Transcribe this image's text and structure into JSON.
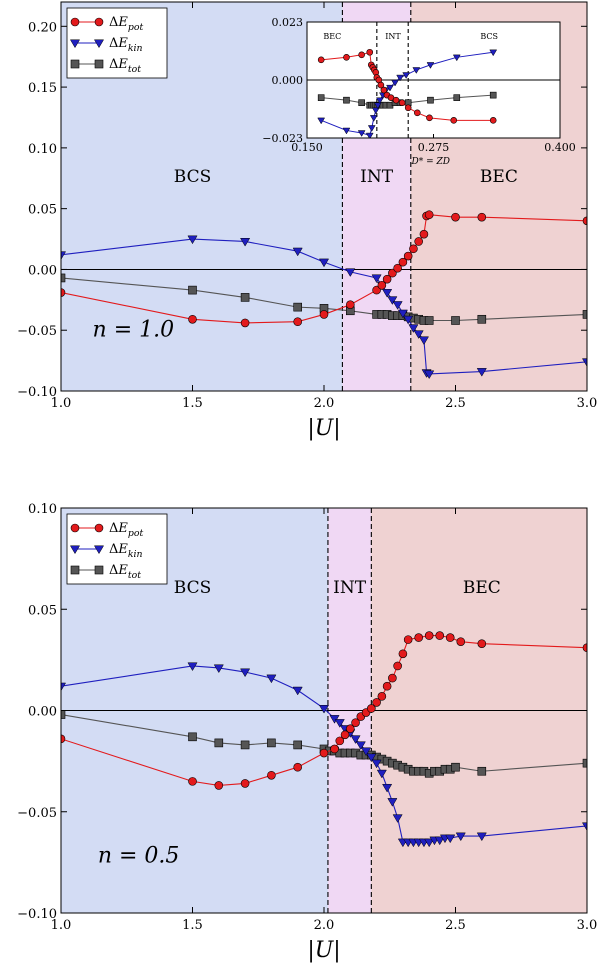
{
  "chart_data": [
    {
      "type": "line",
      "x_var": "|U|",
      "xlabel": "|U|",
      "ylabel": "",
      "xlim": [
        1.0,
        3.0
      ],
      "ylim": [
        -0.1,
        0.22
      ],
      "xticks": [
        "1.0",
        "1.5",
        "2.0",
        "2.5",
        "3.0"
      ],
      "yticks": [
        "−0.10",
        "−0.05",
        "0.00",
        "0.05",
        "0.10",
        "0.15",
        "0.20"
      ],
      "ytick_values": [
        -0.1,
        -0.05,
        0.0,
        0.05,
        0.1,
        0.15,
        0.2
      ],
      "xtick_values": [
        1.0,
        1.5,
        2.0,
        2.5,
        3.0
      ],
      "annotation": "n = 1.0",
      "regions": [
        {
          "label": "BCS",
          "from": 1.0,
          "to": 2.07,
          "color": "#d3dcf4",
          "text_color": "#4a6fd6"
        },
        {
          "label": "INT",
          "from": 2.07,
          "to": 2.33,
          "color": "#f0d8f4",
          "text_color": "#c55ad0"
        },
        {
          "label": "BEC",
          "from": 2.33,
          "to": 3.0,
          "color": "#efd2d2",
          "text_color": "#b32828"
        }
      ],
      "boundaries": [
        2.07,
        2.33
      ],
      "legend_position": "top-left",
      "series": [
        {
          "name": "ΔE_pot",
          "color": "#e31a1c",
          "marker": "circle",
          "x": [
            1.0,
            1.5,
            1.7,
            1.9,
            2.0,
            2.1,
            2.2,
            2.22,
            2.24,
            2.26,
            2.28,
            2.3,
            2.32,
            2.34,
            2.36,
            2.38,
            2.39,
            2.4,
            2.5,
            2.6,
            3.0
          ],
          "y": [
            -0.019,
            -0.041,
            -0.044,
            -0.043,
            -0.037,
            -0.029,
            -0.017,
            -0.013,
            -0.008,
            -0.003,
            0.001,
            0.006,
            0.011,
            0.017,
            0.023,
            0.029,
            0.044,
            0.045,
            0.043,
            0.043,
            0.04
          ]
        },
        {
          "name": "ΔE_kin",
          "color": "#1f1fbf",
          "marker": "triangle-down",
          "x": [
            1.0,
            1.5,
            1.7,
            1.9,
            2.0,
            2.1,
            2.2,
            2.22,
            2.24,
            2.26,
            2.28,
            2.3,
            2.32,
            2.34,
            2.36,
            2.38,
            2.39,
            2.4,
            2.6,
            3.0
          ],
          "y": [
            0.012,
            0.025,
            0.023,
            0.015,
            0.006,
            -0.002,
            -0.007,
            -0.013,
            -0.019,
            -0.025,
            -0.029,
            -0.036,
            -0.041,
            -0.048,
            -0.053,
            -0.058,
            -0.085,
            -0.086,
            -0.084,
            -0.076
          ]
        },
        {
          "name": "ΔE_tot",
          "color": "#555555",
          "marker": "square",
          "x": [
            1.0,
            1.5,
            1.7,
            1.9,
            2.0,
            2.1,
            2.2,
            2.22,
            2.24,
            2.26,
            2.28,
            2.3,
            2.32,
            2.34,
            2.36,
            2.38,
            2.4,
            2.5,
            2.6,
            3.0
          ],
          "y": [
            -0.007,
            -0.017,
            -0.023,
            -0.031,
            -0.032,
            -0.034,
            -0.037,
            -0.037,
            -0.037,
            -0.038,
            -0.038,
            -0.038,
            -0.039,
            -0.04,
            -0.041,
            -0.042,
            -0.042,
            -0.042,
            -0.041,
            -0.037
          ]
        }
      ],
      "inset": {
        "x_var": "D* = ZD",
        "xlabel": "D* = ZD",
        "xlim": [
          0.15,
          0.4
        ],
        "ylim": [
          -0.023,
          0.023
        ],
        "xticks": [
          "0.150",
          "0.275",
          "0.400"
        ],
        "xtick_values": [
          0.15,
          0.275,
          0.4
        ],
        "yticks": [
          "0.023",
          "0.000",
          "−0.023"
        ],
        "ytick_values": [
          0.023,
          0.0,
          -0.023
        ],
        "regions": [
          {
            "label": "BEC",
            "from": 0.15,
            "to": 0.219,
            "text_color": "#b32828"
          },
          {
            "label": "INT",
            "from": 0.219,
            "to": 0.25,
            "text_color": "#c55ad0"
          },
          {
            "label": "BCS",
            "from": 0.25,
            "to": 0.4,
            "text_color": "#4a6fd6"
          }
        ],
        "boundaries": [
          0.219,
          0.25
        ],
        "series": [
          {
            "name": "ΔE_pot",
            "color": "#e31a1c",
            "marker": "circle",
            "x": [
              0.164,
              0.189,
              0.204,
              0.212,
              0.2135,
              0.215,
              0.2165,
              0.218,
              0.219,
              0.221,
              0.223,
              0.226,
              0.229,
              0.233,
              0.238,
              0.244,
              0.25,
              0.259,
              0.271,
              0.295,
              0.334
            ],
            "y": [
              0.008,
              0.009,
              0.01,
              0.011,
              0.006,
              0.005,
              0.004,
              0.003,
              0.001,
              0.0,
              -0.002,
              -0.004,
              -0.006,
              -0.007,
              -0.008,
              -0.009,
              -0.011,
              -0.013,
              -0.015,
              -0.016,
              -0.016
            ]
          },
          {
            "name": "ΔE_kin",
            "color": "#1f1fbf",
            "marker": "triangle-down",
            "x": [
              0.164,
              0.189,
              0.204,
              0.212,
              0.214,
              0.216,
              0.218,
              0.22,
              0.222,
              0.225,
              0.228,
              0.232,
              0.237,
              0.242,
              0.248,
              0.258,
              0.272,
              0.298,
              0.334
            ],
            "y": [
              -0.016,
              -0.02,
              -0.021,
              -0.022,
              -0.019,
              -0.015,
              -0.012,
              -0.01,
              -0.008,
              -0.006,
              -0.004,
              -0.003,
              -0.001,
              0.001,
              0.002,
              0.004,
              0.006,
              0.009,
              0.011
            ]
          },
          {
            "name": "ΔE_tot",
            "color": "#555555",
            "marker": "square",
            "x": [
              0.164,
              0.189,
              0.204,
              0.212,
              0.214,
              0.216,
              0.218,
              0.22,
              0.222,
              0.225,
              0.228,
              0.232,
              0.237,
              0.242,
              0.25,
              0.272,
              0.298,
              0.334
            ],
            "y": [
              -0.007,
              -0.008,
              -0.009,
              -0.01,
              -0.01,
              -0.01,
              -0.01,
              -0.01,
              -0.01,
              -0.01,
              -0.01,
              -0.01,
              -0.009,
              -0.009,
              -0.009,
              -0.008,
              -0.007,
              -0.006
            ]
          }
        ]
      }
    },
    {
      "type": "line",
      "x_var": "|U|",
      "xlabel": "|U|",
      "ylabel": "",
      "xlim": [
        1.0,
        3.0
      ],
      "ylim": [
        -0.1,
        0.1
      ],
      "xticks": [
        "1.0",
        "1.5",
        "2.0",
        "2.5",
        "3.0"
      ],
      "yticks": [
        "−0.10",
        "−0.05",
        "0.00",
        "0.05",
        "0.10"
      ],
      "ytick_values": [
        -0.1,
        -0.05,
        0.0,
        0.05,
        0.1
      ],
      "xtick_values": [
        1.0,
        1.5,
        2.0,
        2.5,
        3.0
      ],
      "annotation": "n = 0.5",
      "regions": [
        {
          "label": "BCS",
          "from": 1.0,
          "to": 2.015,
          "color": "#d3dcf4",
          "text_color": "#4a6fd6"
        },
        {
          "label": "INT",
          "from": 2.015,
          "to": 2.18,
          "color": "#f0d8f4",
          "text_color": "#c55ad0"
        },
        {
          "label": "BEC",
          "from": 2.18,
          "to": 3.0,
          "color": "#efd2d2",
          "text_color": "#b32828"
        }
      ],
      "boundaries": [
        2.015,
        2.18
      ],
      "legend_position": "top-left",
      "series": [
        {
          "name": "ΔE_pot",
          "color": "#e31a1c",
          "marker": "circle",
          "x": [
            1.0,
            1.5,
            1.6,
            1.7,
            1.8,
            1.9,
            2.0,
            2.04,
            2.06,
            2.08,
            2.1,
            2.12,
            2.14,
            2.16,
            2.18,
            2.2,
            2.22,
            2.24,
            2.26,
            2.28,
            2.3,
            2.32,
            2.36,
            2.4,
            2.44,
            2.48,
            2.52,
            2.6,
            3.0
          ],
          "y": [
            -0.014,
            -0.035,
            -0.037,
            -0.036,
            -0.032,
            -0.028,
            -0.021,
            -0.019,
            -0.015,
            -0.012,
            -0.009,
            -0.006,
            -0.003,
            -0.001,
            0.001,
            0.004,
            0.007,
            0.012,
            0.016,
            0.022,
            0.028,
            0.035,
            0.036,
            0.037,
            0.037,
            0.036,
            0.034,
            0.033,
            0.031
          ]
        },
        {
          "name": "ΔE_kin",
          "color": "#1f1fbf",
          "marker": "triangle-down",
          "x": [
            1.0,
            1.5,
            1.6,
            1.7,
            1.8,
            1.9,
            2.0,
            2.04,
            2.06,
            2.08,
            2.1,
            2.12,
            2.14,
            2.16,
            2.18,
            2.2,
            2.22,
            2.24,
            2.26,
            2.28,
            2.3,
            2.32,
            2.34,
            2.36,
            2.38,
            2.4,
            2.42,
            2.44,
            2.46,
            2.48,
            2.52,
            2.6,
            3.0
          ],
          "y": [
            0.012,
            0.022,
            0.021,
            0.019,
            0.016,
            0.01,
            0.001,
            -0.004,
            -0.006,
            -0.009,
            -0.011,
            -0.014,
            -0.017,
            -0.02,
            -0.023,
            -0.026,
            -0.031,
            -0.038,
            -0.045,
            -0.053,
            -0.065,
            -0.065,
            -0.065,
            -0.065,
            -0.065,
            -0.065,
            -0.064,
            -0.064,
            -0.063,
            -0.063,
            -0.062,
            -0.062,
            -0.057
          ]
        },
        {
          "name": "ΔE_tot",
          "color": "#555555",
          "marker": "square",
          "x": [
            1.0,
            1.5,
            1.6,
            1.7,
            1.8,
            1.9,
            2.0,
            2.02,
            2.04,
            2.06,
            2.08,
            2.1,
            2.12,
            2.14,
            2.16,
            2.18,
            2.2,
            2.22,
            2.24,
            2.26,
            2.28,
            2.3,
            2.32,
            2.34,
            2.36,
            2.38,
            2.4,
            2.42,
            2.44,
            2.46,
            2.48,
            2.5,
            2.6,
            3.0
          ],
          "y": [
            -0.002,
            -0.013,
            -0.016,
            -0.017,
            -0.016,
            -0.017,
            -0.019,
            -0.02,
            -0.02,
            -0.021,
            -0.021,
            -0.021,
            -0.021,
            -0.022,
            -0.022,
            -0.022,
            -0.023,
            -0.024,
            -0.025,
            -0.026,
            -0.027,
            -0.028,
            -0.029,
            -0.03,
            -0.03,
            -0.03,
            -0.031,
            -0.03,
            -0.03,
            -0.029,
            -0.029,
            -0.028,
            -0.03,
            -0.026
          ]
        }
      ]
    }
  ]
}
